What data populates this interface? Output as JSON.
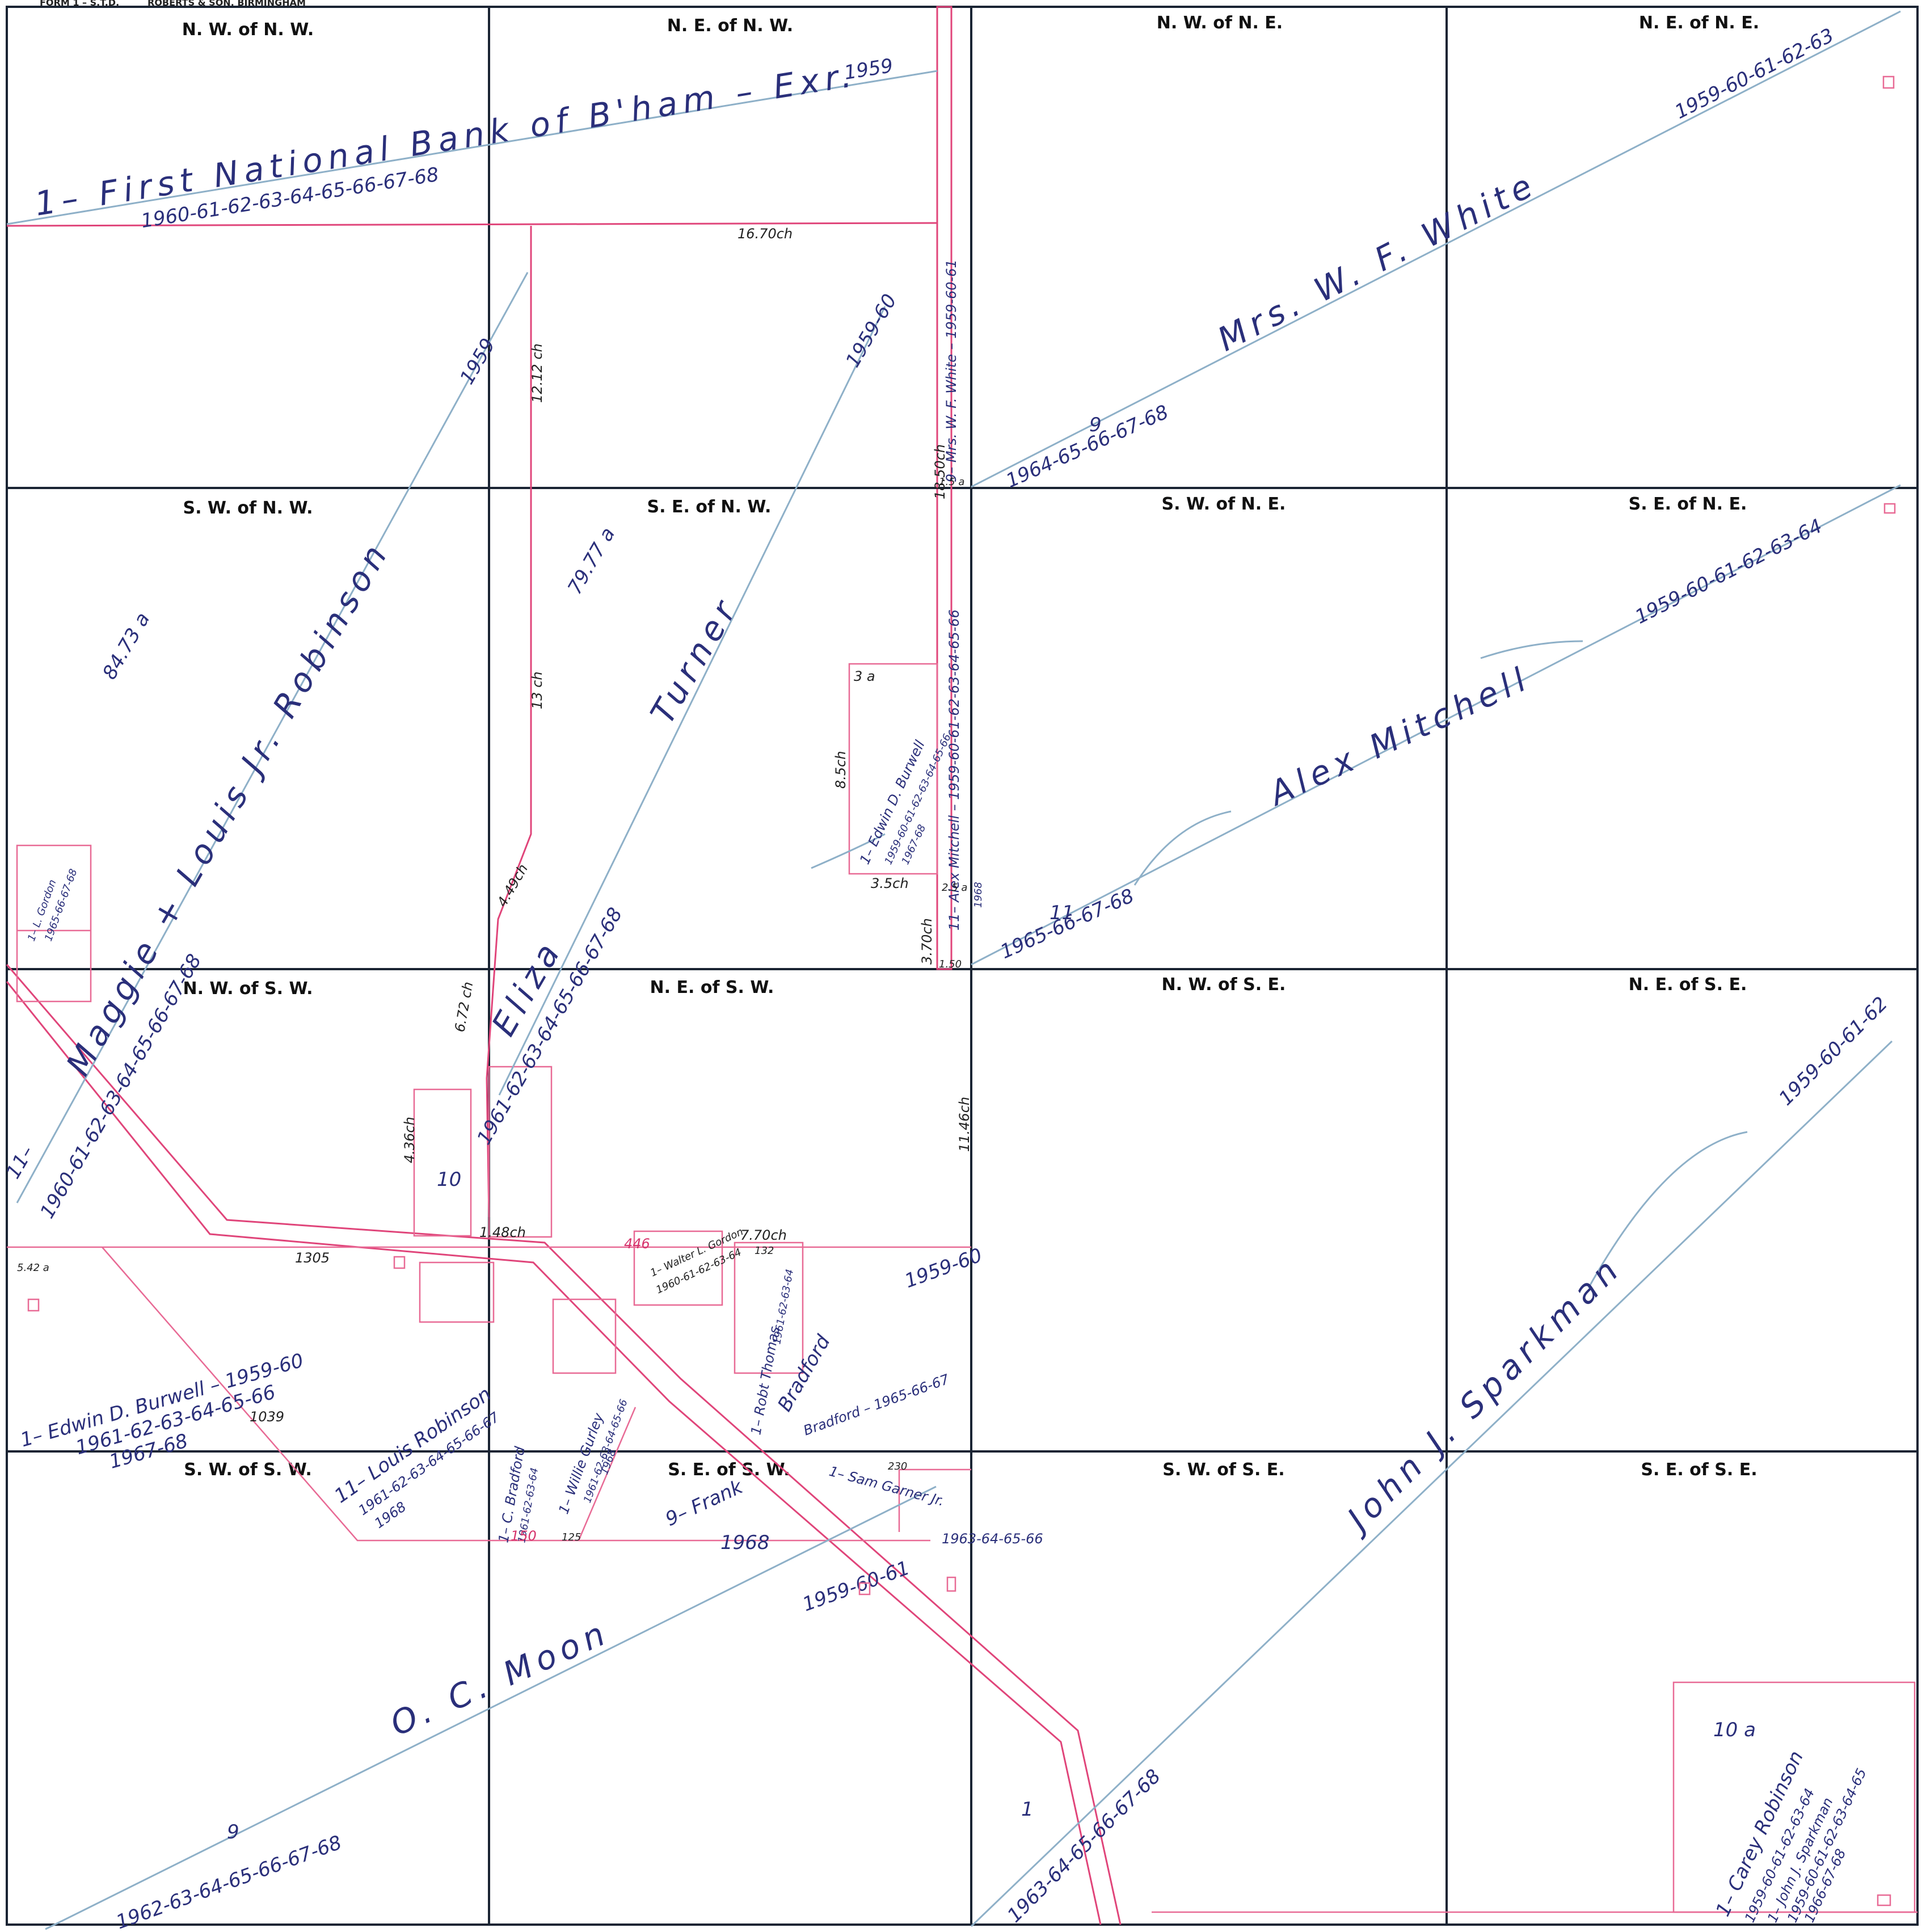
{
  "header": {
    "form_label": "FORM 1 – S.T.D.",
    "printer": "ROBERTS & SON, BIRMINGHAM"
  },
  "quarter_squares": [
    "N. W. of N. W.",
    "N. E. of N. W.",
    "N. W. of N. E.",
    "N. E. of N. E.",
    "S. W. of N. W.",
    "S. E. of N. W.",
    "S. W. of N. E.",
    "S. E. of N. E.",
    "N. W. of S. W.",
    "N. E. of S. W.",
    "N. W. of S. E.",
    "N. E. of S. E.",
    "S. W. of S. W.",
    "S. E. of S. W.",
    "S. W. of S. E.",
    "S. E. of S. E."
  ],
  "owners": {
    "first_national": {
      "name": "1– First National Bank of B'ham – Exr.",
      "years_a": "1959",
      "years_b": "1960-61-62-63-64-65-66-67-68"
    },
    "white": {
      "name": "Mrs. W. F. White",
      "prefix": "9",
      "years_a": "1959-60-61-62-63",
      "years_b": "1964-65-66-67-68"
    },
    "white_strip": {
      "name": "9– Mrs. W. F. White – 1959-60-61"
    },
    "robinson_louis": {
      "name": "Maggie + Louis Jr. Robinson",
      "prefix": "11–",
      "years_a": "1959",
      "years_b": "1960-61-62-63-64-65-66-67-68"
    },
    "turner": {
      "name": "Turner",
      "years": "1959-60"
    },
    "eliza": {
      "name": "Eliza",
      "years": "1961-62-63-64-65-66-67-68"
    },
    "mitchell": {
      "name": "Alex Mitchell",
      "prefix": "11",
      "years_a": "1959-60-61-62-63-64",
      "years_b": "1965-66-67-68"
    },
    "mitchell_strip": {
      "name": "11– Alex Mitchell – 1959-60-61-62-63-64-65-66",
      "sub": "1968"
    },
    "burwell_small": {
      "name": "1– Edwin D. Burwell",
      "years_a": "1959-60-61-62-63-64-65-66",
      "years_b": "1967-68"
    },
    "burwell_sw": {
      "name": "1– Edwin D. Burwell – 1959-60",
      "years_a": "1961-62-63-64-65-66",
      "years_b": "1967-68"
    },
    "louis_robinson": {
      "name": "11– Louis Robinson",
      "years_a": "1961-62-63-64-65-66-67",
      "years_b": "1968"
    },
    "sparkman": {
      "name": "John J. Sparkman",
      "prefix": "1",
      "years_a": "1959-60-61-62",
      "years_b": "1963-64-65-66-67-68"
    },
    "moon": {
      "name": "O. C. Moon",
      "prefix": "9",
      "years_a": "1959-60-61",
      "years_b": "1962-63-64-65-66-67-68"
    },
    "bradford": {
      "name": "Bradford",
      "years_a": "1959-60",
      "years_b": "Bradford – 1965-66-67"
    },
    "thomas": {
      "name": "1– Robt Thomas",
      "years": "1961-62-63-64"
    },
    "gurley": {
      "name": "1– Willie Gurley",
      "years": "1961-62-63-64-65-66",
      "sub": "1968"
    },
    "frank": {
      "name": "9– Frank",
      "sub": "1968"
    },
    "sam_garner": {
      "name": "1– Sam Garner Jr.",
      "years": "1963-64-65-66"
    },
    "gordon": {
      "name": "1– L. Gordon",
      "years": "1965-66-67-68"
    },
    "carey": {
      "name": "1– Carey Robinson",
      "years": "1959-60-61-62-63-64"
    },
    "sparkman_se": {
      "name": "1– John J. Sparkman",
      "years_a": "1959-60-61-62-63-64-65",
      "years_b": "1966-67-68"
    },
    "c_bradford": {
      "name": "1– C. Bradford",
      "years": "1961-62-63-64"
    },
    "walter": {
      "name": "1– Walter L. Gordon",
      "years": "1960-61-62-63-64"
    }
  },
  "measurements": {
    "m1": "16.70ch",
    "m2": "12.12 ch",
    "m3": "84.73 a",
    "m4": "79.77 a",
    "m5": "13 ch",
    "m6": "3 a",
    "m7": "8.5ch",
    "m8": "3.5ch",
    "m9": "4.49ch",
    "m10": "6.72 ch",
    "m11": "4.36ch",
    "m12": "1.48ch",
    "m13": "7.70ch",
    "m14": "11.46ch",
    "m15": "10 a",
    "m16": "1305",
    "m17": "1039",
    "m18": "18.50ch",
    "m19": "2.5 a",
    "m20": "3.70ch",
    "m21": "1.50",
    "m22": "150",
    "m23": "125",
    "m24": "230",
    "m25": "446",
    "m26": "5.42 a",
    "m27": "10",
    "m28": "1.5 a",
    "m29": "132"
  }
}
